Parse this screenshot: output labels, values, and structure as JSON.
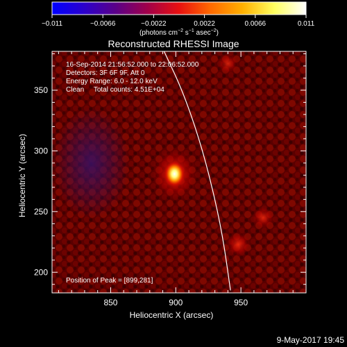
{
  "colorbar": {
    "ticks": [
      "−0.011",
      "−0.0066",
      "−0.0022",
      "0.0022",
      "0.0066",
      "0.011"
    ],
    "tick_values": [
      -0.011,
      -0.0066,
      -0.0022,
      0.0022,
      0.0066,
      0.011
    ],
    "range": [
      -0.011,
      0.011
    ],
    "unit_main": "(photons cm",
    "unit_sup1": "−2",
    "unit_mid": " s",
    "unit_sup2": "−1",
    "unit_mid2": " asec",
    "unit_sup3": "−2",
    "unit_end": ")",
    "colors": [
      "#0000ff",
      "#2b00cc",
      "#5a0088",
      "#a0004a",
      "#e81010",
      "#ff6a00",
      "#ffb000",
      "#ffff60",
      "#ffffff"
    ]
  },
  "chart_data": {
    "type": "heatmap",
    "title": "Reconstructed RHESSI Image",
    "xlabel": "Heliocentric X (arcsec)",
    "ylabel": "Heliocentric Y (arcsec)",
    "xlim": [
      805,
      1000
    ],
    "ylim": [
      183,
      382
    ],
    "x_ticks": [
      850,
      900,
      950
    ],
    "y_ticks": [
      200,
      250,
      300,
      350
    ],
    "x_tick_labels": [
      "850",
      "900",
      "950"
    ],
    "y_tick_labels": [
      "200",
      "250",
      "300",
      "350"
    ],
    "info_lines": [
      "16-Sep-2014 21:56:52.000 to 22:06:52.000",
      "Detectors: 3F 6F 9F, Att 0",
      "Energy Range: 6.0 - 12.0 keV",
      "Clean     Total counts: 4.51E+04"
    ],
    "peak_label": "Position of Peak = [899,281]",
    "peak": [
      899,
      281
    ],
    "sources": [
      {
        "x": 899,
        "y": 281,
        "level": 1.0
      },
      {
        "x": 948,
        "y": 223,
        "level": 0.45
      },
      {
        "x": 967,
        "y": 245,
        "level": 0.35
      },
      {
        "x": 940,
        "y": 372,
        "level": 0.3
      }
    ],
    "limb_curve": [
      [
        891,
        382
      ],
      [
        905,
        350
      ],
      [
        918,
        310
      ],
      [
        928,
        270
      ],
      [
        936,
        230
      ],
      [
        942,
        185
      ]
    ]
  },
  "footer": {
    "timestamp": "9-May-2017 19:45"
  }
}
